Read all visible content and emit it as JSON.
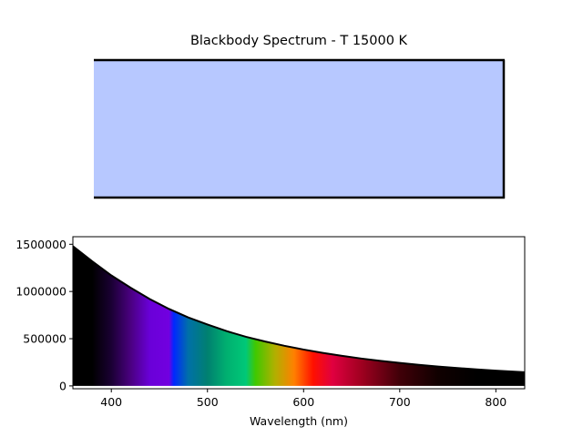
{
  "chart_data": [
    {
      "type": "area",
      "title": "Blackbody Spectrum - T 15000 K",
      "swatch_color": "#b7c8ff",
      "note": "color swatch panel"
    },
    {
      "type": "area",
      "title": "",
      "xlabel": "Wavelength (nm)",
      "ylabel": "",
      "xlim": [
        360,
        830
      ],
      "ylim": [
        -30000,
        1580000
      ],
      "x_ticks": [
        400,
        500,
        600,
        700,
        800
      ],
      "y_ticks": [
        0,
        500000,
        1000000,
        1500000
      ],
      "x": [
        360,
        380,
        400,
        420,
        440,
        460,
        480,
        500,
        520,
        540,
        560,
        580,
        600,
        620,
        640,
        660,
        680,
        700,
        720,
        740,
        760,
        780,
        800,
        830
      ],
      "values": [
        1480000,
        1320000,
        1170000,
        1040000,
        920000,
        815000,
        725000,
        650000,
        580000,
        520000,
        470000,
        425000,
        385000,
        350000,
        318000,
        290000,
        265000,
        243000,
        223000,
        205000,
        189000,
        175000,
        162000,
        145000
      ],
      "fill_colors": [
        {
          "wl": 360,
          "color": "#000000"
        },
        {
          "wl": 380,
          "color": "#000000"
        },
        {
          "wl": 400,
          "color": "#1a0033"
        },
        {
          "wl": 420,
          "color": "#4a0080"
        },
        {
          "wl": 440,
          "color": "#6a00d8"
        },
        {
          "wl": 460,
          "color": "#7200e0"
        },
        {
          "wl": 465,
          "color": "#0028ff"
        },
        {
          "wl": 480,
          "color": "#0070a8"
        },
        {
          "wl": 500,
          "color": "#008070"
        },
        {
          "wl": 520,
          "color": "#00b070"
        },
        {
          "wl": 540,
          "color": "#00c878"
        },
        {
          "wl": 550,
          "color": "#40c800"
        },
        {
          "wl": 570,
          "color": "#b0b000"
        },
        {
          "wl": 590,
          "color": "#ff8000"
        },
        {
          "wl": 610,
          "color": "#ff1000"
        },
        {
          "wl": 630,
          "color": "#e00040"
        },
        {
          "wl": 660,
          "color": "#a00020"
        },
        {
          "wl": 700,
          "color": "#400008"
        },
        {
          "wl": 740,
          "color": "#100000"
        },
        {
          "wl": 780,
          "color": "#000000"
        },
        {
          "wl": 830,
          "color": "#000000"
        }
      ]
    }
  ]
}
